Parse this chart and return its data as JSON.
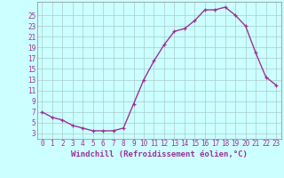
{
  "x": [
    0,
    1,
    2,
    3,
    4,
    5,
    6,
    7,
    8,
    9,
    10,
    11,
    12,
    13,
    14,
    15,
    16,
    17,
    18,
    19,
    20,
    21,
    22,
    23
  ],
  "y": [
    7,
    6,
    5.5,
    4.5,
    4,
    3.5,
    3.5,
    3.5,
    4,
    8.5,
    13,
    16.5,
    19.5,
    22,
    22.5,
    24,
    26,
    26,
    26.5,
    25,
    23,
    18,
    13.5,
    12
  ],
  "line_color": "#993399",
  "marker": "+",
  "bg_color": "#ccffff",
  "grid_color": "#aacccc",
  "xlabel": "Windchill (Refroidissement éolien,°C)",
  "yticks": [
    3,
    5,
    7,
    9,
    11,
    13,
    15,
    17,
    19,
    21,
    23,
    25
  ],
  "xticks": [
    0,
    1,
    2,
    3,
    4,
    5,
    6,
    7,
    8,
    9,
    10,
    11,
    12,
    13,
    14,
    15,
    16,
    17,
    18,
    19,
    20,
    21,
    22,
    23
  ],
  "ylim": [
    2.0,
    27.5
  ],
  "xlim": [
    -0.5,
    23.5
  ],
  "xlabel_fontsize": 6.5,
  "tick_fontsize": 5.5,
  "line_width": 1.0,
  "marker_size": 3.5,
  "spine_color": "#888888"
}
